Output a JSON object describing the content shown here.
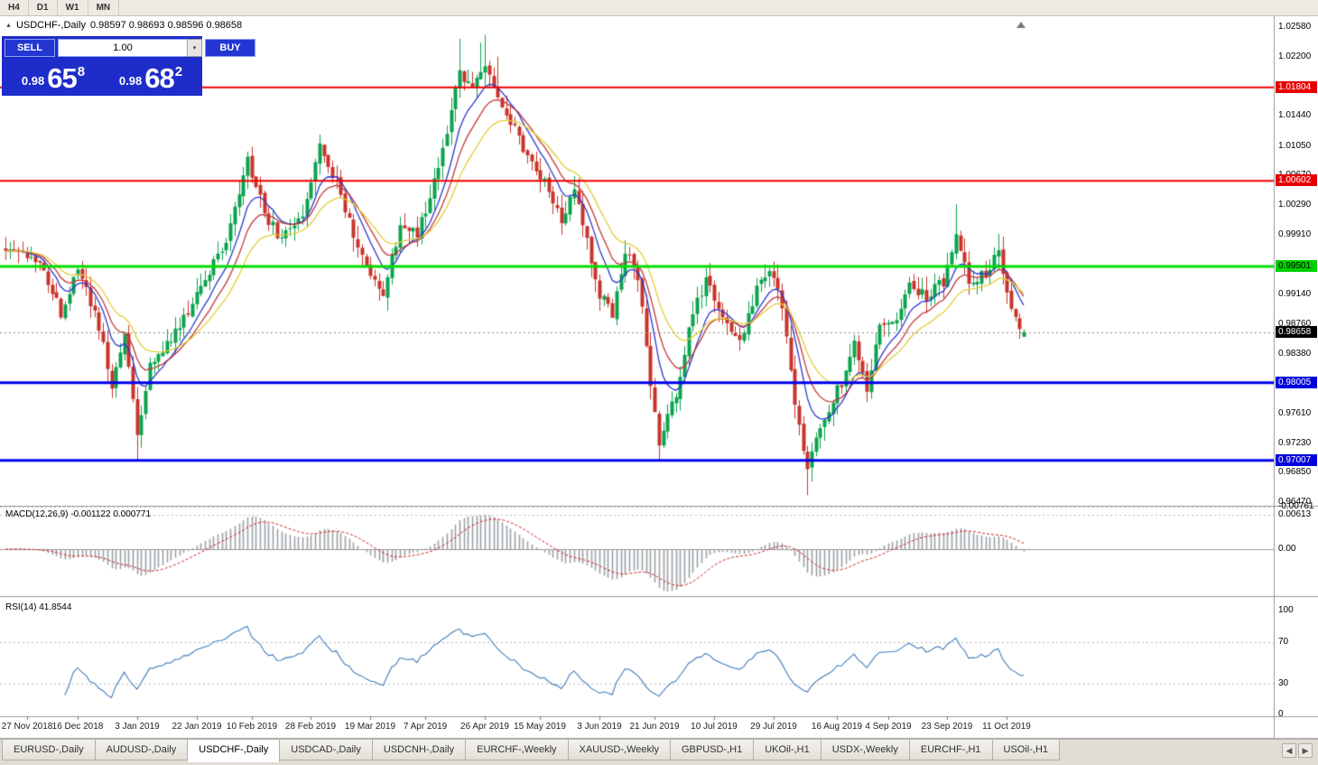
{
  "toolbar": {
    "timeframes": [
      {
        "label": "H4"
      },
      {
        "label": "D1"
      },
      {
        "label": "W1"
      },
      {
        "label": "MN"
      }
    ]
  },
  "chart": {
    "symbol_title": "USDCHF-,Daily",
    "ohlc": "0.98597 0.98693 0.98596 0.98658"
  },
  "trade_widget": {
    "sell_label": "SELL",
    "buy_label": "BUY",
    "volume_value": "1.00",
    "sell_price": {
      "prefix": "0.98",
      "big": "65",
      "sup": "8"
    },
    "buy_price": {
      "prefix": "0.98",
      "big": "68",
      "sup": "2"
    }
  },
  "price_axis": {
    "ticks": [
      1.0258,
      1.022,
      1.0144,
      1.0105,
      1.0067,
      1.0029,
      0.9991,
      0.9914,
      0.9876,
      0.9838,
      0.9761,
      0.9723,
      0.9685,
      0.9647
    ],
    "badges": [
      {
        "value": 1.01804,
        "bg": "#e80000",
        "fg": "#ffffff"
      },
      {
        "value": 1.00602,
        "bg": "#e80000",
        "fg": "#ffffff"
      },
      {
        "value": 0.99501,
        "bg": "#00d000",
        "fg": "#000000"
      },
      {
        "value": 0.98658,
        "bg": "#000000",
        "fg": "#ffffff"
      },
      {
        "value": 0.98005,
        "bg": "#0000dd",
        "fg": "#ffffff"
      },
      {
        "value": 0.97007,
        "bg": "#0000dd",
        "fg": "#ffffff"
      }
    ]
  },
  "chart_data": {
    "type": "candlestick",
    "symbol": "USDCHF",
    "timeframe": "Daily",
    "ohlc_current": {
      "open": 0.98597,
      "high": 0.98693,
      "low": 0.98596,
      "close": 0.98658
    },
    "ylim": [
      0.9647,
      1.0258
    ],
    "num_candles": 241,
    "close_path_anchors": [
      [
        0,
        0.9975
      ],
      [
        8,
        0.996
      ],
      [
        13,
        0.989
      ],
      [
        17,
        0.995
      ],
      [
        22,
        0.987
      ],
      [
        25,
        0.98
      ],
      [
        28,
        0.986
      ],
      [
        31,
        0.9735
      ],
      [
        34,
        0.982
      ],
      [
        40,
        0.9865
      ],
      [
        45,
        0.9915
      ],
      [
        52,
        0.998
      ],
      [
        57,
        1.0085
      ],
      [
        61,
        1.002
      ],
      [
        64,
        0.999
      ],
      [
        70,
        1.002
      ],
      [
        74,
        1.0105
      ],
      [
        78,
        1.006
      ],
      [
        82,
        0.999
      ],
      [
        86,
        0.9935
      ],
      [
        89,
        0.9918
      ],
      [
        93,
        1.0
      ],
      [
        97,
        0.999
      ],
      [
        102,
        1.008
      ],
      [
        107,
        1.02
      ],
      [
        110,
        1.0185
      ],
      [
        113,
        1.0205
      ],
      [
        116,
        1.016
      ],
      [
        119,
        1.0135
      ],
      [
        123,
        1.009
      ],
      [
        127,
        1.006
      ],
      [
        131,
        1.0005
      ],
      [
        134,
        1.0048
      ],
      [
        137,
        0.998
      ],
      [
        140,
        0.9912
      ],
      [
        143,
        0.9892
      ],
      [
        146,
        0.997
      ],
      [
        149,
        0.994
      ],
      [
        152,
        0.9795
      ],
      [
        154,
        0.9725
      ],
      [
        158,
        0.979
      ],
      [
        162,
        0.989
      ],
      [
        165,
        0.9932
      ],
      [
        169,
        0.988
      ],
      [
        173,
        0.9852
      ],
      [
        177,
        0.9925
      ],
      [
        180,
        0.9948
      ],
      [
        183,
        0.99
      ],
      [
        186,
        0.9765
      ],
      [
        189,
        0.9692
      ],
      [
        193,
        0.976
      ],
      [
        197,
        0.98
      ],
      [
        200,
        0.9848
      ],
      [
        203,
        0.9792
      ],
      [
        206,
        0.9868
      ],
      [
        210,
        0.988
      ],
      [
        213,
        0.9928
      ],
      [
        217,
        0.991
      ],
      [
        221,
        0.9932
      ],
      [
        224,
        0.9988
      ],
      [
        227,
        0.993
      ],
      [
        231,
        0.994
      ],
      [
        234,
        0.9968
      ],
      [
        237,
        0.9898
      ],
      [
        240,
        0.98658
      ]
    ],
    "spikes": [
      {
        "i": 31,
        "low": 0.97
      },
      {
        "i": 107,
        "high": 1.0243
      },
      {
        "i": 112,
        "high": 1.0238
      },
      {
        "i": 113,
        "high": 1.0248
      },
      {
        "i": 116,
        "high": 1.022
      },
      {
        "i": 154,
        "low": 0.9701
      },
      {
        "i": 189,
        "low": 0.9656
      },
      {
        "i": 224,
        "high": 1.003
      },
      {
        "i": 234,
        "high": 0.9992
      }
    ],
    "levels": [
      {
        "price": 1.01804,
        "color": "#ee0000",
        "width": 2
      },
      {
        "price": 1.00602,
        "color": "#ee0000",
        "width": 2
      },
      {
        "price": 0.99501,
        "color": "#00dd00",
        "width": 3
      },
      {
        "price": 0.98005,
        "color": "#0000e8",
        "width": 3
      },
      {
        "price": 0.97007,
        "color": "#0000e8",
        "width": 3
      }
    ],
    "current_price_line": {
      "price": 0.98658,
      "color": "#888888"
    },
    "up_color": "#0ca34e",
    "down_color": "#c8342b",
    "moving_averages": [
      {
        "period": 8,
        "color": "#2b38cf"
      },
      {
        "period": 13,
        "color": "#c03838"
      },
      {
        "period": 21,
        "color": "#e3cd36"
      }
    ],
    "dates": [
      {
        "label": "27 Nov 2018",
        "i": 5
      },
      {
        "label": "16 Dec 2018",
        "i": 17
      },
      {
        "label": "3 Jan 2019",
        "i": 31
      },
      {
        "label": "22 Jan 2019",
        "i": 45
      },
      {
        "label": "10 Feb 2019",
        "i": 58
      },
      {
        "label": "28 Feb 2019",
        "i": 72
      },
      {
        "label": "19 Mar 2019",
        "i": 86
      },
      {
        "label": "7 Apr 2019",
        "i": 99
      },
      {
        "label": "26 Apr 2019",
        "i": 113
      },
      {
        "label": "15 May 2019",
        "i": 126
      },
      {
        "label": "3 Jun 2019",
        "i": 140
      },
      {
        "label": "21 Jun 2019",
        "i": 153
      },
      {
        "label": "10 Jul 2019",
        "i": 167
      },
      {
        "label": "29 Jul 2019",
        "i": 181
      },
      {
        "label": "16 Aug 2019",
        "i": 196
      },
      {
        "label": "4 Sep 2019",
        "i": 208
      },
      {
        "label": "23 Sep 2019",
        "i": 222
      },
      {
        "label": "11 Oct 2019",
        "i": 236
      }
    ]
  },
  "macd_panel": {
    "label": "MACD(12,26,9) -0.001122 0.000771",
    "current_macd": -0.001122,
    "current_signal": 0.000771,
    "axis_ticks": [
      {
        "text": "0.00613",
        "value": 0.00613
      },
      {
        "text": "0.00",
        "value": 0
      },
      {
        "text": "-0.00761",
        "value": -0.00761
      }
    ],
    "histogram_color": "#9aa0a6",
    "signal_color": "#cc2222"
  },
  "rsi_panel": {
    "label": "RSI(14) 41.8544",
    "current_value": 41.8544,
    "axis_ticks": [
      {
        "text": "100",
        "value": 100
      },
      {
        "text": "70",
        "value": 70
      },
      {
        "text": "30",
        "value": 30
      },
      {
        "text": "0",
        "value": 0
      }
    ],
    "line_color": "#3e7bbb",
    "dashed_levels": [
      70,
      30
    ]
  },
  "tabs": {
    "items": [
      {
        "label": "EURUSD-,Daily",
        "active": false
      },
      {
        "label": "AUDUSD-,Daily",
        "active": false
      },
      {
        "label": "USDCHF-,Daily",
        "active": true
      },
      {
        "label": "USDCAD-,Daily",
        "active": false
      },
      {
        "label": "USDCNH-,Daily",
        "active": false
      },
      {
        "label": "EURCHF-,Weekly",
        "active": false
      },
      {
        "label": "XAUUSD-,Weekly",
        "active": false
      },
      {
        "label": "GBPUSD-,H1",
        "active": false
      },
      {
        "label": "UKOil-,H1",
        "active": false
      },
      {
        "label": "USDX-,Weekly",
        "active": false
      },
      {
        "label": "EURCHF-,H1",
        "active": false
      },
      {
        "label": "USOil-,H1",
        "active": false
      }
    ],
    "scroll_left": "◀",
    "scroll_right": "▶"
  }
}
